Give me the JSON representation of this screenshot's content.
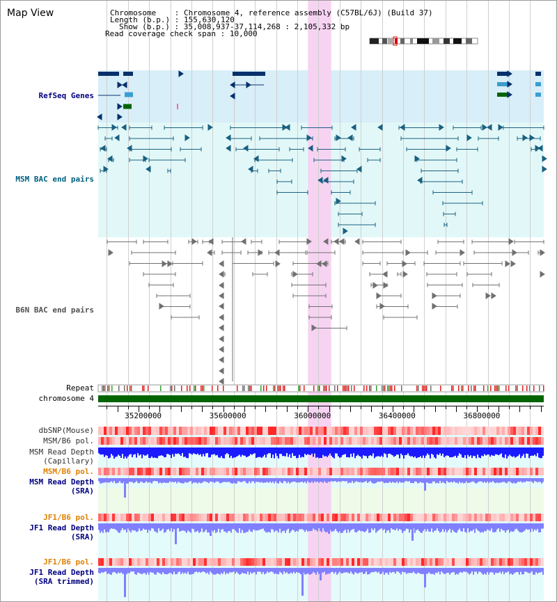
{
  "view_title": "Map View",
  "info": {
    "chromosome_label": "Chromosome",
    "chromosome_value": "Chromosome 4, reference assembly (C57BL/6J) (Build 37)",
    "length_label": "Length (b.p.)",
    "length_value": "155,630,120",
    "show_label": "Show (b.p.)",
    "show_value": "35,008,937-37,114,268 : 2,105,332 bp",
    "span_label": "Read coverage check span",
    "span_value": "10,000"
  },
  "tracks": {
    "refseq": "RefSeq Genes",
    "msm_bac": "MSM BAC end pairs",
    "b6n_bac": "B6N BAC end pairs",
    "repeat": "Repeat",
    "chromosome": "chromosome 4",
    "dbsnp": "dbSNP(Mouse)",
    "msm_b6_pol_1": "MSM/B6 pol.",
    "msm_depth_cap_1": "MSM Read Depth",
    "msm_depth_cap_2": "(Capillary)",
    "msm_b6_pol_2": "MSM/B6 pol.",
    "msm_depth_sra_1": "MSM Read Depth",
    "msm_depth_sra_2": "(SRA)",
    "jf1_b6_pol_1": "JF1/B6 pol.",
    "jf1_depth_sra_1": "JF1 Read Depth",
    "jf1_depth_sra_2": "(SRA)",
    "jf1_b6_pol_2": "JF1/B6 pol.",
    "jf1_depth_trim_1": "JF1 Read Depth",
    "jf1_depth_trim_2": "(SRA trimmed)"
  },
  "axis": {
    "start_bp": 35008937,
    "end_bp": 37114268,
    "ticks": [
      "35200000",
      "35600000",
      "36000000",
      "36400000",
      "36800000"
    ],
    "tick_values": [
      35200000,
      35600000,
      36000000,
      36400000,
      36800000
    ]
  },
  "highlight": {
    "start_bp": 36000000,
    "end_bp": 36110000
  },
  "colors": {
    "refseq_bg": "#d8eef8",
    "msm_bg": "#e2f8f8",
    "refseq_gene": "#08306b",
    "msm_pair": "#1a6080",
    "b6n_pair": "#707070",
    "highlight": "#f7d3f2",
    "chromosome_bar": "#006400",
    "depth_bar": "#1a1aff",
    "label_navy": "#000080",
    "label_orange": "#e08000"
  }
}
